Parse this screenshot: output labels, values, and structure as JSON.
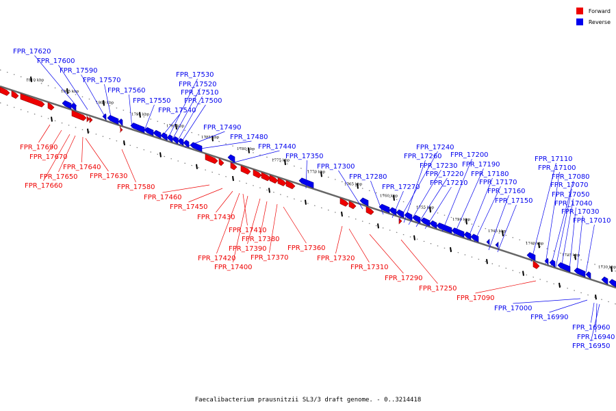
{
  "legend": [
    {
      "label": "Forward",
      "color": "#ee0000"
    },
    {
      "label": "Reverse",
      "color": "#0000ee"
    }
  ],
  "caption": "Faecalibacterium prausnitzii SL3/3 draft genome. - 0..3214418",
  "colors": {
    "forward": "#ee0000",
    "reverse": "#0000ee",
    "backbone": "#666666"
  },
  "kbp_labels": [
    "1810 kbp",
    "1805 kbp",
    "1800 kbp",
    "1795 kbp",
    "1790 kbp",
    "1785 kbp",
    "1780 kbp",
    "1775 kbp",
    "1770 kbp",
    "1765 kbp",
    "1760 kbp",
    "1755 kbp",
    "1750 kbp",
    "1745 kbp",
    "1740 kbp",
    "1735 kbp",
    "1730 kbp"
  ],
  "genes": [
    "FPR_17620",
    "FPR_17600",
    "FPR_17590",
    "FPR_17570",
    "FPR_17560",
    "FPR_17550",
    "FPR_17540",
    "FPR_17530",
    "FPR_17520",
    "FPR_17510",
    "FPR_17500",
    "FPR_17490",
    "FPR_17480",
    "FPR_17440",
    "FPR_17350",
    "FPR_17300",
    "FPR_17280",
    "FPR_17270",
    "FPR_17240",
    "FPR_17260",
    "FPR_17230",
    "FPR_17220",
    "FPR_17210",
    "FPR_17200",
    "FPR_17190",
    "FPR_17180",
    "FPR_17170",
    "FPR_17160",
    "FPR_17150",
    "FPR_17110",
    "FPR_17100",
    "FPR_17080",
    "FPR_17070",
    "FPR_17050",
    "FPR_17040",
    "FPR_17030",
    "FPR_17010",
    "FPR_17690",
    "FPR_17670",
    "FPR_17660",
    "FPR_17650",
    "FPR_17640",
    "FPR_17630",
    "FPR_17580",
    "FPR_17460",
    "FPR_17450",
    "FPR_17430",
    "FPR_17410",
    "FPR_17420",
    "FPR_17400",
    "FPR_17390",
    "FPR_17380",
    "FPR_17370",
    "FPR_17360",
    "FPR_17320",
    "FPR_17310",
    "FPR_17290",
    "FPR_17250",
    "FPR_17090",
    "FPR_17000",
    "FPR_16990",
    "FPR_16960",
    "FPR_16940",
    "FPR_16950"
  ]
}
